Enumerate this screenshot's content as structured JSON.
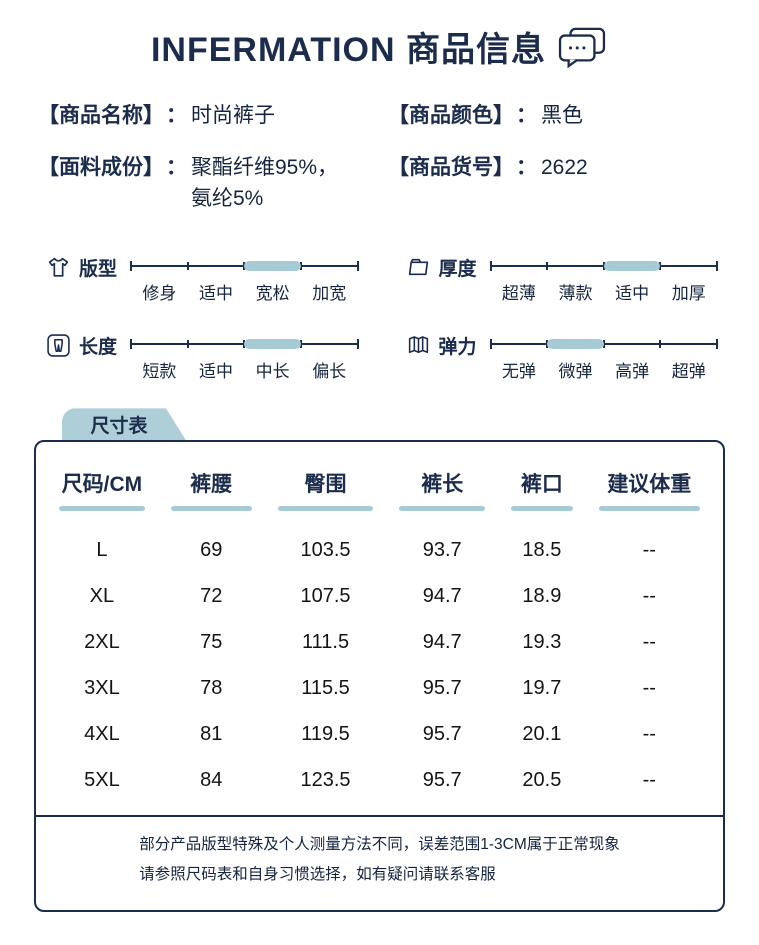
{
  "header": {
    "title": "INFERMATION 商品信息"
  },
  "colors": {
    "navy": "#1c2c4c",
    "light_blue": "#a7cbd5"
  },
  "attributes": [
    {
      "label": "【商品名称】",
      "colon": "：",
      "value": "时尚裤子"
    },
    {
      "label": "【商品颜色】",
      "colon": "：",
      "value": "黑色"
    },
    {
      "label": "【面料成份】",
      "colon": "：",
      "value": "聚酯纤维95%，\n氨纶5%"
    },
    {
      "label": "【商品货号】",
      "colon": "：",
      "value": "2622"
    }
  ],
  "sliders": [
    {
      "icon": "tshirt-icon",
      "label": "版型",
      "options": [
        "修身",
        "适中",
        "宽松",
        "加宽"
      ],
      "selected": 2
    },
    {
      "icon": "folder-icon",
      "label": "厚度",
      "options": [
        "超薄",
        "薄款",
        "适中",
        "加厚"
      ],
      "selected": 2
    },
    {
      "icon": "pants-icon",
      "label": "长度",
      "options": [
        "短款",
        "适中",
        "中长",
        "偏长"
      ],
      "selected": 2
    },
    {
      "icon": "accordion-icon",
      "label": "弹力",
      "options": [
        "无弹",
        "微弹",
        "高弹",
        "超弹"
      ],
      "selected": 1
    }
  ],
  "size_table": {
    "tab": "尺寸表",
    "headers": [
      "尺码/CM",
      "裤腰",
      "臀围",
      "裤长",
      "裤口",
      "建议体重"
    ],
    "rows": [
      [
        "L",
        "69",
        "103.5",
        "93.7",
        "18.5",
        "--"
      ],
      [
        "XL",
        "72",
        "107.5",
        "94.7",
        "18.9",
        "--"
      ],
      [
        "2XL",
        "75",
        "111.5",
        "94.7",
        "19.3",
        "--"
      ],
      [
        "3XL",
        "78",
        "115.5",
        "95.7",
        "19.7",
        "--"
      ],
      [
        "4XL",
        "81",
        "119.5",
        "95.7",
        "20.1",
        "--"
      ],
      [
        "5XL",
        "84",
        "123.5",
        "95.7",
        "20.5",
        "--"
      ]
    ],
    "note_line1": "部分产品版型特殊及个人测量方法不同，误差范围1-3CM属于正常现象",
    "note_line2": "请参照尺码表和自身习惯选择，如有疑问请联系客服"
  }
}
